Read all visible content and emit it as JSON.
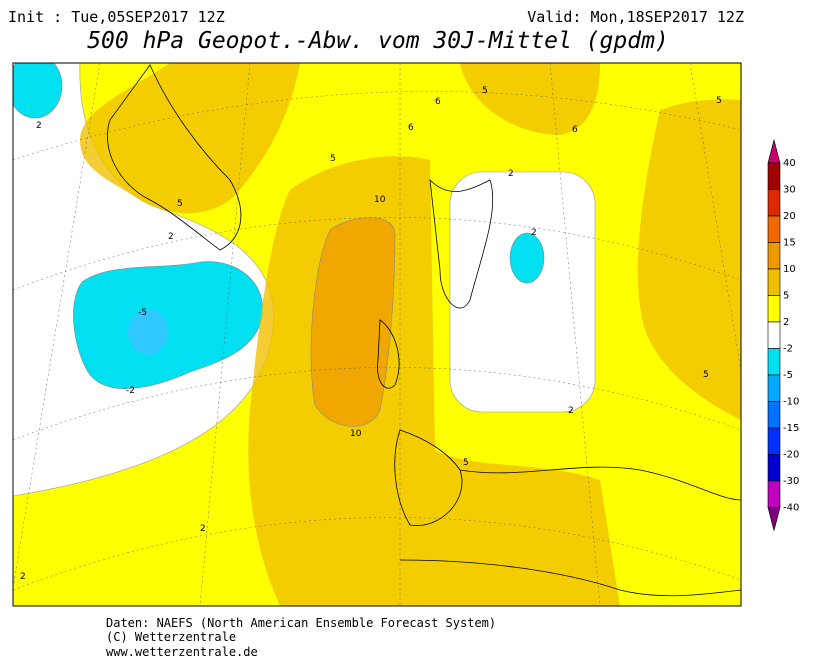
{
  "header": {
    "init": "Init : Tue,05SEP2017 12Z",
    "valid": "Valid: Mon,18SEP2017 12Z",
    "title": "500 hPa Geopot.-Abw. vom 30J-Mittel (gpdm)"
  },
  "contour_labels": [
    "2",
    "5",
    "2",
    "-5",
    "-2",
    "5",
    "10",
    "10",
    "6",
    "5",
    "6",
    "5",
    "6",
    "2",
    "2",
    "5",
    "2",
    "5",
    "2",
    "2"
  ],
  "colorbar": {
    "labels": [
      40,
      30,
      20,
      15,
      10,
      5,
      2,
      -2,
      -5,
      -10,
      -15,
      -20,
      -30,
      -40
    ],
    "colors": [
      "#c8006e",
      "#a00000",
      "#e02800",
      "#f06800",
      "#f09800",
      "#f0c000",
      "#ffff00",
      "#ffffff",
      "#00e0f0",
      "#00a8ff",
      "#0070ff",
      "#0030ff",
      "#0000d0",
      "#c000c0",
      "#800080"
    ]
  },
  "footer": [
    "Daten: NAEFS (North American Ensemble Forecast System)",
    "(C) Wetterzentrale",
    "www.wetterzentrale.de"
  ]
}
